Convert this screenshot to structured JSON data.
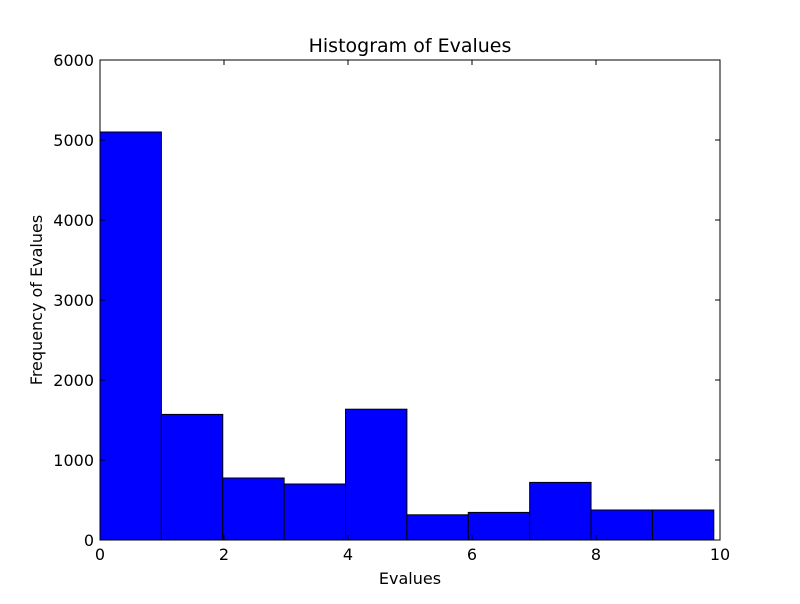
{
  "chart_data": {
    "type": "bar",
    "title": "Histogram of Evalues",
    "xlabel": "Evalues",
    "ylabel": "Frequency of Evalues",
    "xlim": [
      0,
      10
    ],
    "ylim": [
      0,
      6000
    ],
    "xticks": [
      0,
      2,
      4,
      6,
      8,
      10
    ],
    "yticks": [
      0,
      1000,
      2000,
      3000,
      4000,
      5000,
      6000
    ],
    "bin_edges": [
      0.0,
      0.99,
      1.98,
      2.97,
      3.96,
      4.95,
      5.94,
      6.93,
      7.92,
      8.91,
      9.9
    ],
    "values": [
      5100,
      1570,
      775,
      700,
      1635,
      315,
      345,
      720,
      375,
      375
    ],
    "bar_color": "#0000ff",
    "edge_color": "#000000",
    "grid": false,
    "legend": "none"
  }
}
